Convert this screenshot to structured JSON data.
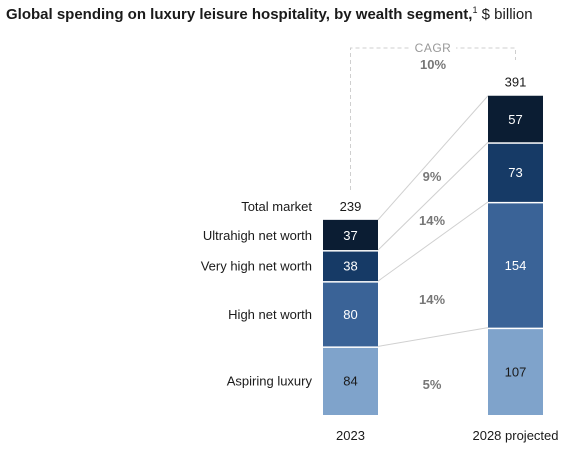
{
  "header": {
    "title": "Global spending on luxury leisure hospitality, by wealth segment,",
    "footnote_mark": "1",
    "unit": "$ billion"
  },
  "chart_data": {
    "type": "bar",
    "stacked": true,
    "categories": [
      "2023",
      "2028 projected"
    ],
    "totals": [
      239,
      391
    ],
    "total_label": "Total market",
    "series": [
      {
        "name": "Aspiring luxury",
        "values": [
          84,
          107
        ],
        "color": "#7fa3cb",
        "text_color": "#1a1a1a",
        "cagr": "5%"
      },
      {
        "name": "High net worth",
        "values": [
          80,
          154
        ],
        "color": "#3a6397",
        "text_color": "#ffffff",
        "cagr": "14%"
      },
      {
        "name": "Very high net worth",
        "values": [
          38,
          73
        ],
        "color": "#163a66",
        "text_color": "#ffffff",
        "cagr": "14%"
      },
      {
        "name": "Ultrahigh net worth",
        "values": [
          37,
          57
        ],
        "color": "#0b1d33",
        "text_color": "#ffffff",
        "cagr": "9%"
      }
    ],
    "total_cagr": {
      "label": "CAGR",
      "value": "10%"
    }
  }
}
